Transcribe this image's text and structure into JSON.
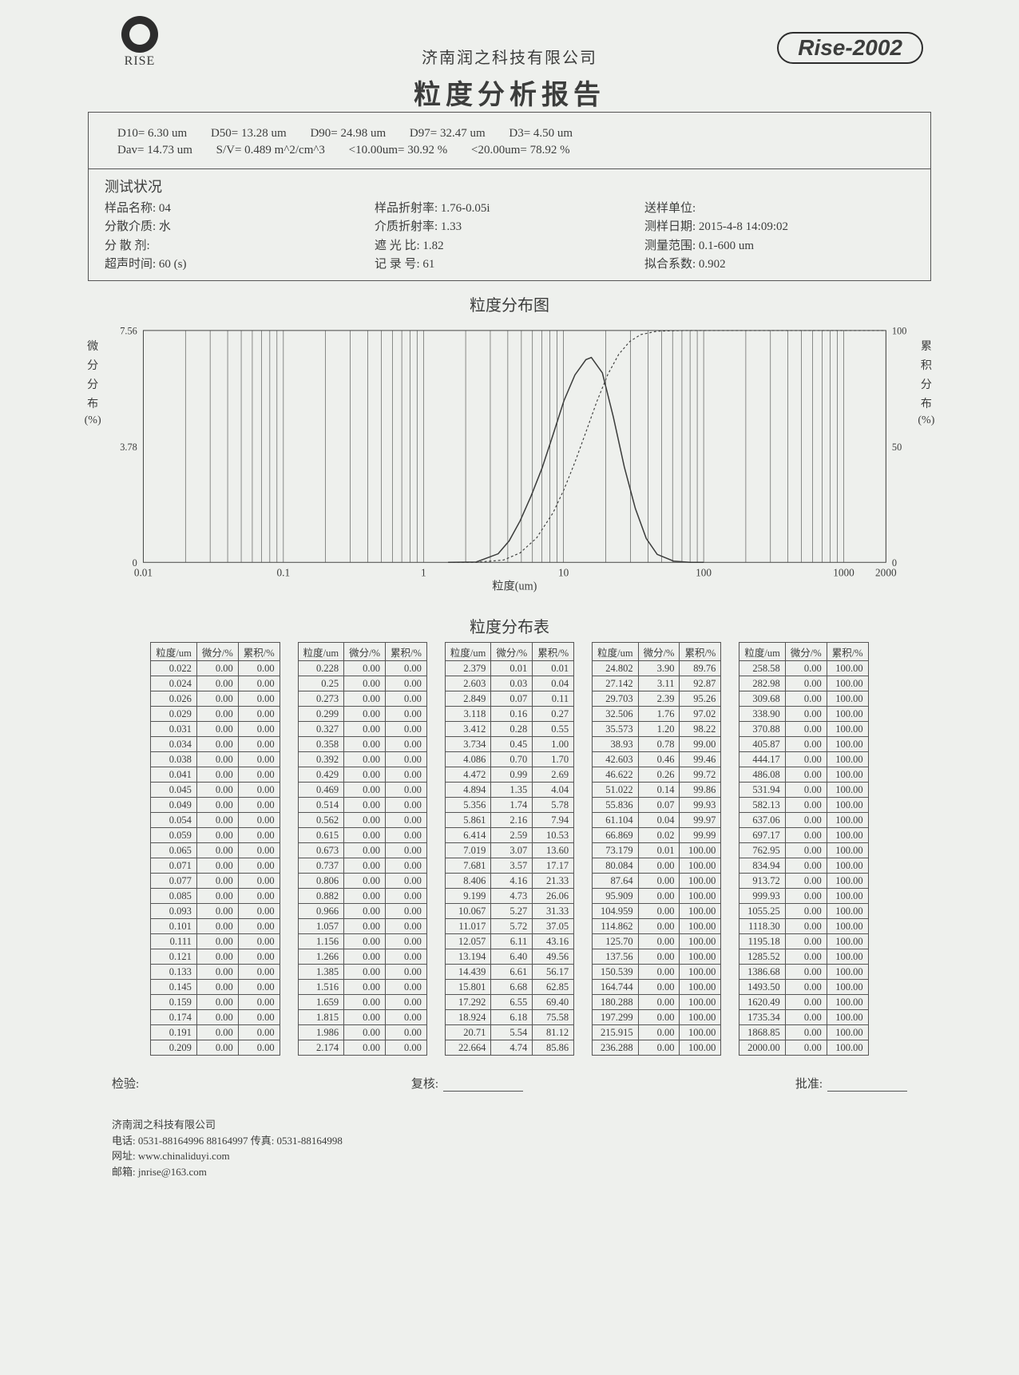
{
  "header": {
    "logo_text": "RISE",
    "company": "济南润之科技有限公司",
    "title": "粒度分析报告",
    "badge": "Rise-2002"
  },
  "stats": {
    "d10": "D10= 6.30 um",
    "d50": "D50= 13.28 um",
    "d90": "D90= 24.98 um",
    "d97": "D97= 32.47 um",
    "d3": "D3= 4.50 um",
    "dav": "Dav= 14.73 um",
    "sv": "S/V= 0.489 m^2/cm^3",
    "lt10": "<10.00um= 30.92 %",
    "lt20": "<20.00um= 78.92 %"
  },
  "test": {
    "title": "测试状况",
    "col1": {
      "a": "样品名称: 04",
      "b": "分散介质: 水",
      "c": "分 散 剂:",
      "d": "超声时间: 60    (s)"
    },
    "col2": {
      "a": "样品折射率: 1.76-0.05i",
      "b": "介质折射率: 1.33",
      "c": "遮 光 比: 1.82",
      "d": "记 录 号: 61"
    },
    "col3": {
      "a": "送样单位:",
      "b": "测样日期: 2015-4-8 14:09:02",
      "c": "测量范围: 0.1-600 um",
      "d": "拟合系数: 0.902"
    }
  },
  "chart": {
    "title": "粒度分布图",
    "xlabel": "粒度(um)",
    "ylabel_left": "微 分 分 布 (%)",
    "ylabel_right": "累 积 分 布 (%)",
    "xaxis": {
      "min": 0.01,
      "max": 2000,
      "ticks": [
        "0.01",
        "0.1",
        "1",
        "10",
        "100",
        "1000",
        "2000"
      ]
    },
    "yaxis_left": {
      "min": 0,
      "max": 7.56,
      "ticks": [
        "0",
        "3.78",
        "7.56"
      ]
    },
    "yaxis_right": {
      "min": 0,
      "max": 100,
      "ticks": [
        "0",
        "50",
        "100"
      ]
    },
    "background": "#eef0ed",
    "axis_color": "#3c3d3c",
    "grid_color": "#3c3d3c",
    "curve_color": "#3c3d3c",
    "diff_curve": [
      [
        1.5,
        0
      ],
      [
        2.379,
        0.01
      ],
      [
        3.412,
        0.28
      ],
      [
        4.086,
        0.7
      ],
      [
        4.894,
        1.35
      ],
      [
        5.861,
        2.16
      ],
      [
        7.019,
        3.07
      ],
      [
        8.406,
        4.16
      ],
      [
        10.067,
        5.27
      ],
      [
        12.057,
        6.11
      ],
      [
        14.439,
        6.61
      ],
      [
        15.801,
        6.68
      ],
      [
        18.924,
        6.18
      ],
      [
        22.664,
        4.74
      ],
      [
        27.142,
        3.11
      ],
      [
        32.506,
        1.76
      ],
      [
        38.93,
        0.78
      ],
      [
        46.622,
        0.26
      ],
      [
        61.104,
        0.04
      ],
      [
        80.084,
        0.0
      ],
      [
        100,
        0
      ]
    ],
    "cum_curve": [
      [
        1.5,
        0
      ],
      [
        2.379,
        0.01
      ],
      [
        3.734,
        1.0
      ],
      [
        4.894,
        4.04
      ],
      [
        6.414,
        10.53
      ],
      [
        8.406,
        21.33
      ],
      [
        10.067,
        31.33
      ],
      [
        12.057,
        43.16
      ],
      [
        14.439,
        56.17
      ],
      [
        17.292,
        69.4
      ],
      [
        20.71,
        81.12
      ],
      [
        24.802,
        89.76
      ],
      [
        29.703,
        95.26
      ],
      [
        35.573,
        98.22
      ],
      [
        46.622,
        99.72
      ],
      [
        73.179,
        100.0
      ],
      [
        2000,
        100
      ]
    ]
  },
  "dist": {
    "title": "粒度分布表",
    "headers": [
      "粒度/um",
      "微分/%",
      "累积/%"
    ],
    "blocks": [
      [
        [
          "0.022",
          "0.00",
          "0.00"
        ],
        [
          "0.024",
          "0.00",
          "0.00"
        ],
        [
          "0.026",
          "0.00",
          "0.00"
        ],
        [
          "0.029",
          "0.00",
          "0.00"
        ],
        [
          "0.031",
          "0.00",
          "0.00"
        ],
        [
          "0.034",
          "0.00",
          "0.00"
        ],
        [
          "0.038",
          "0.00",
          "0.00"
        ],
        [
          "0.041",
          "0.00",
          "0.00"
        ],
        [
          "0.045",
          "0.00",
          "0.00"
        ],
        [
          "0.049",
          "0.00",
          "0.00"
        ],
        [
          "0.054",
          "0.00",
          "0.00"
        ],
        [
          "0.059",
          "0.00",
          "0.00"
        ],
        [
          "0.065",
          "0.00",
          "0.00"
        ],
        [
          "0.071",
          "0.00",
          "0.00"
        ],
        [
          "0.077",
          "0.00",
          "0.00"
        ],
        [
          "0.085",
          "0.00",
          "0.00"
        ],
        [
          "0.093",
          "0.00",
          "0.00"
        ],
        [
          "0.101",
          "0.00",
          "0.00"
        ],
        [
          "0.111",
          "0.00",
          "0.00"
        ],
        [
          "0.121",
          "0.00",
          "0.00"
        ],
        [
          "0.133",
          "0.00",
          "0.00"
        ],
        [
          "0.145",
          "0.00",
          "0.00"
        ],
        [
          "0.159",
          "0.00",
          "0.00"
        ],
        [
          "0.174",
          "0.00",
          "0.00"
        ],
        [
          "0.191",
          "0.00",
          "0.00"
        ],
        [
          "0.209",
          "0.00",
          "0.00"
        ]
      ],
      [
        [
          "0.228",
          "0.00",
          "0.00"
        ],
        [
          "0.25",
          "0.00",
          "0.00"
        ],
        [
          "0.273",
          "0.00",
          "0.00"
        ],
        [
          "0.299",
          "0.00",
          "0.00"
        ],
        [
          "0.327",
          "0.00",
          "0.00"
        ],
        [
          "0.358",
          "0.00",
          "0.00"
        ],
        [
          "0.392",
          "0.00",
          "0.00"
        ],
        [
          "0.429",
          "0.00",
          "0.00"
        ],
        [
          "0.469",
          "0.00",
          "0.00"
        ],
        [
          "0.514",
          "0.00",
          "0.00"
        ],
        [
          "0.562",
          "0.00",
          "0.00"
        ],
        [
          "0.615",
          "0.00",
          "0.00"
        ],
        [
          "0.673",
          "0.00",
          "0.00"
        ],
        [
          "0.737",
          "0.00",
          "0.00"
        ],
        [
          "0.806",
          "0.00",
          "0.00"
        ],
        [
          "0.882",
          "0.00",
          "0.00"
        ],
        [
          "0.966",
          "0.00",
          "0.00"
        ],
        [
          "1.057",
          "0.00",
          "0.00"
        ],
        [
          "1.156",
          "0.00",
          "0.00"
        ],
        [
          "1.266",
          "0.00",
          "0.00"
        ],
        [
          "1.385",
          "0.00",
          "0.00"
        ],
        [
          "1.516",
          "0.00",
          "0.00"
        ],
        [
          "1.659",
          "0.00",
          "0.00"
        ],
        [
          "1.815",
          "0.00",
          "0.00"
        ],
        [
          "1.986",
          "0.00",
          "0.00"
        ],
        [
          "2.174",
          "0.00",
          "0.00"
        ]
      ],
      [
        [
          "2.379",
          "0.01",
          "0.01"
        ],
        [
          "2.603",
          "0.03",
          "0.04"
        ],
        [
          "2.849",
          "0.07",
          "0.11"
        ],
        [
          "3.118",
          "0.16",
          "0.27"
        ],
        [
          "3.412",
          "0.28",
          "0.55"
        ],
        [
          "3.734",
          "0.45",
          "1.00"
        ],
        [
          "4.086",
          "0.70",
          "1.70"
        ],
        [
          "4.472",
          "0.99",
          "2.69"
        ],
        [
          "4.894",
          "1.35",
          "4.04"
        ],
        [
          "5.356",
          "1.74",
          "5.78"
        ],
        [
          "5.861",
          "2.16",
          "7.94"
        ],
        [
          "6.414",
          "2.59",
          "10.53"
        ],
        [
          "7.019",
          "3.07",
          "13.60"
        ],
        [
          "7.681",
          "3.57",
          "17.17"
        ],
        [
          "8.406",
          "4.16",
          "21.33"
        ],
        [
          "9.199",
          "4.73",
          "26.06"
        ],
        [
          "10.067",
          "5.27",
          "31.33"
        ],
        [
          "11.017",
          "5.72",
          "37.05"
        ],
        [
          "12.057",
          "6.11",
          "43.16"
        ],
        [
          "13.194",
          "6.40",
          "49.56"
        ],
        [
          "14.439",
          "6.61",
          "56.17"
        ],
        [
          "15.801",
          "6.68",
          "62.85"
        ],
        [
          "17.292",
          "6.55",
          "69.40"
        ],
        [
          "18.924",
          "6.18",
          "75.58"
        ],
        [
          "20.71",
          "5.54",
          "81.12"
        ],
        [
          "22.664",
          "4.74",
          "85.86"
        ]
      ],
      [
        [
          "24.802",
          "3.90",
          "89.76"
        ],
        [
          "27.142",
          "3.11",
          "92.87"
        ],
        [
          "29.703",
          "2.39",
          "95.26"
        ],
        [
          "32.506",
          "1.76",
          "97.02"
        ],
        [
          "35.573",
          "1.20",
          "98.22"
        ],
        [
          "38.93",
          "0.78",
          "99.00"
        ],
        [
          "42.603",
          "0.46",
          "99.46"
        ],
        [
          "46.622",
          "0.26",
          "99.72"
        ],
        [
          "51.022",
          "0.14",
          "99.86"
        ],
        [
          "55.836",
          "0.07",
          "99.93"
        ],
        [
          "61.104",
          "0.04",
          "99.97"
        ],
        [
          "66.869",
          "0.02",
          "99.99"
        ],
        [
          "73.179",
          "0.01",
          "100.00"
        ],
        [
          "80.084",
          "0.00",
          "100.00"
        ],
        [
          "87.64",
          "0.00",
          "100.00"
        ],
        [
          "95.909",
          "0.00",
          "100.00"
        ],
        [
          "104.959",
          "0.00",
          "100.00"
        ],
        [
          "114.862",
          "0.00",
          "100.00"
        ],
        [
          "125.70",
          "0.00",
          "100.00"
        ],
        [
          "137.56",
          "0.00",
          "100.00"
        ],
        [
          "150.539",
          "0.00",
          "100.00"
        ],
        [
          "164.744",
          "0.00",
          "100.00"
        ],
        [
          "180.288",
          "0.00",
          "100.00"
        ],
        [
          "197.299",
          "0.00",
          "100.00"
        ],
        [
          "215.915",
          "0.00",
          "100.00"
        ],
        [
          "236.288",
          "0.00",
          "100.00"
        ]
      ],
      [
        [
          "258.58",
          "0.00",
          "100.00"
        ],
        [
          "282.98",
          "0.00",
          "100.00"
        ],
        [
          "309.68",
          "0.00",
          "100.00"
        ],
        [
          "338.90",
          "0.00",
          "100.00"
        ],
        [
          "370.88",
          "0.00",
          "100.00"
        ],
        [
          "405.87",
          "0.00",
          "100.00"
        ],
        [
          "444.17",
          "0.00",
          "100.00"
        ],
        [
          "486.08",
          "0.00",
          "100.00"
        ],
        [
          "531.94",
          "0.00",
          "100.00"
        ],
        [
          "582.13",
          "0.00",
          "100.00"
        ],
        [
          "637.06",
          "0.00",
          "100.00"
        ],
        [
          "697.17",
          "0.00",
          "100.00"
        ],
        [
          "762.95",
          "0.00",
          "100.00"
        ],
        [
          "834.94",
          "0.00",
          "100.00"
        ],
        [
          "913.72",
          "0.00",
          "100.00"
        ],
        [
          "999.93",
          "0.00",
          "100.00"
        ],
        [
          "1055.25",
          "0.00",
          "100.00"
        ],
        [
          "1118.30",
          "0.00",
          "100.00"
        ],
        [
          "1195.18",
          "0.00",
          "100.00"
        ],
        [
          "1285.52",
          "0.00",
          "100.00"
        ],
        [
          "1386.68",
          "0.00",
          "100.00"
        ],
        [
          "1493.50",
          "0.00",
          "100.00"
        ],
        [
          "1620.49",
          "0.00",
          "100.00"
        ],
        [
          "1735.34",
          "0.00",
          "100.00"
        ],
        [
          "1868.85",
          "0.00",
          "100.00"
        ],
        [
          "2000.00",
          "0.00",
          "100.00"
        ]
      ]
    ]
  },
  "signatures": {
    "a": "检验:",
    "b": "复核:",
    "c": "批准:"
  },
  "footer": {
    "l1": "济南润之科技有限公司",
    "l2": "电话: 0531-88164996 88164997 传真: 0531-88164998",
    "l3": "网址: www.chinaliduyi.com",
    "l4": "邮箱: jnrise@163.com"
  }
}
